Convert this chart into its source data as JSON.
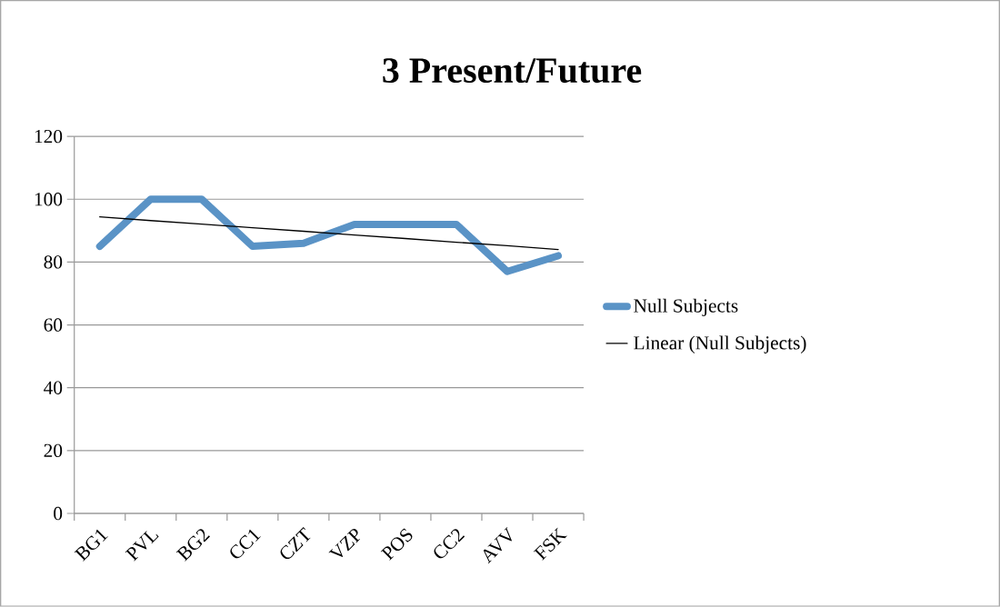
{
  "chart_data": {
    "type": "line",
    "title": "3 Present/Future",
    "categories": [
      "BG1",
      "PVL",
      "BG2",
      "CC1",
      "CZT",
      "VZP",
      "POS",
      "CC2",
      "AVV",
      "FSK"
    ],
    "series": [
      {
        "name": "Null Subjects",
        "color": "#5a93c6",
        "values": [
          85,
          100,
          100,
          85,
          86,
          92,
          92,
          92,
          77,
          82
        ]
      },
      {
        "name": "Linear (Null Subjects)",
        "type": "line",
        "color": "#000000",
        "values": [
          94.4,
          93.2,
          92.1,
          90.9,
          89.8,
          88.6,
          87.5,
          86.3,
          85.2,
          84.0
        ]
      }
    ],
    "ylim": [
      0,
      120
    ],
    "yticks": [
      0,
      20,
      40,
      60,
      80,
      100,
      120
    ],
    "grid": "y",
    "legend": "right",
    "marker": "none",
    "line_style": "solid"
  }
}
